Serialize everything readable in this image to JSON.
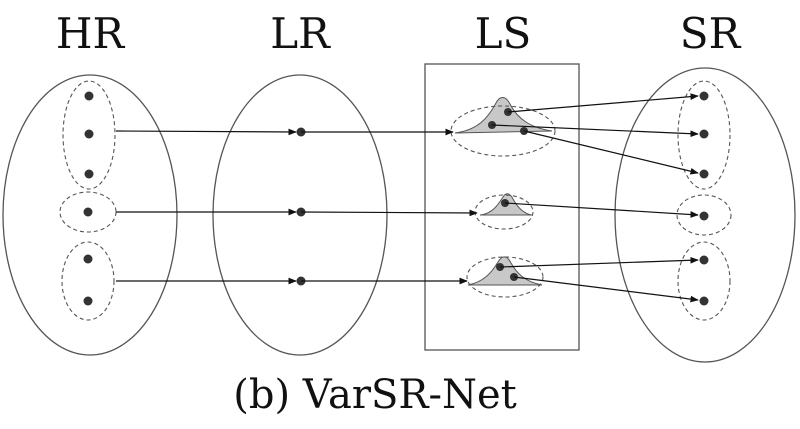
{
  "columns": {
    "hr": "HR",
    "lr": "LR",
    "ls": "LS",
    "sr": "SR"
  },
  "caption": "(b) VarSR-Net",
  "colors": {
    "stroke": "#555555",
    "dot": "#333333",
    "arrow": "#111111",
    "distribution_fill": "#c8c8c8"
  }
}
